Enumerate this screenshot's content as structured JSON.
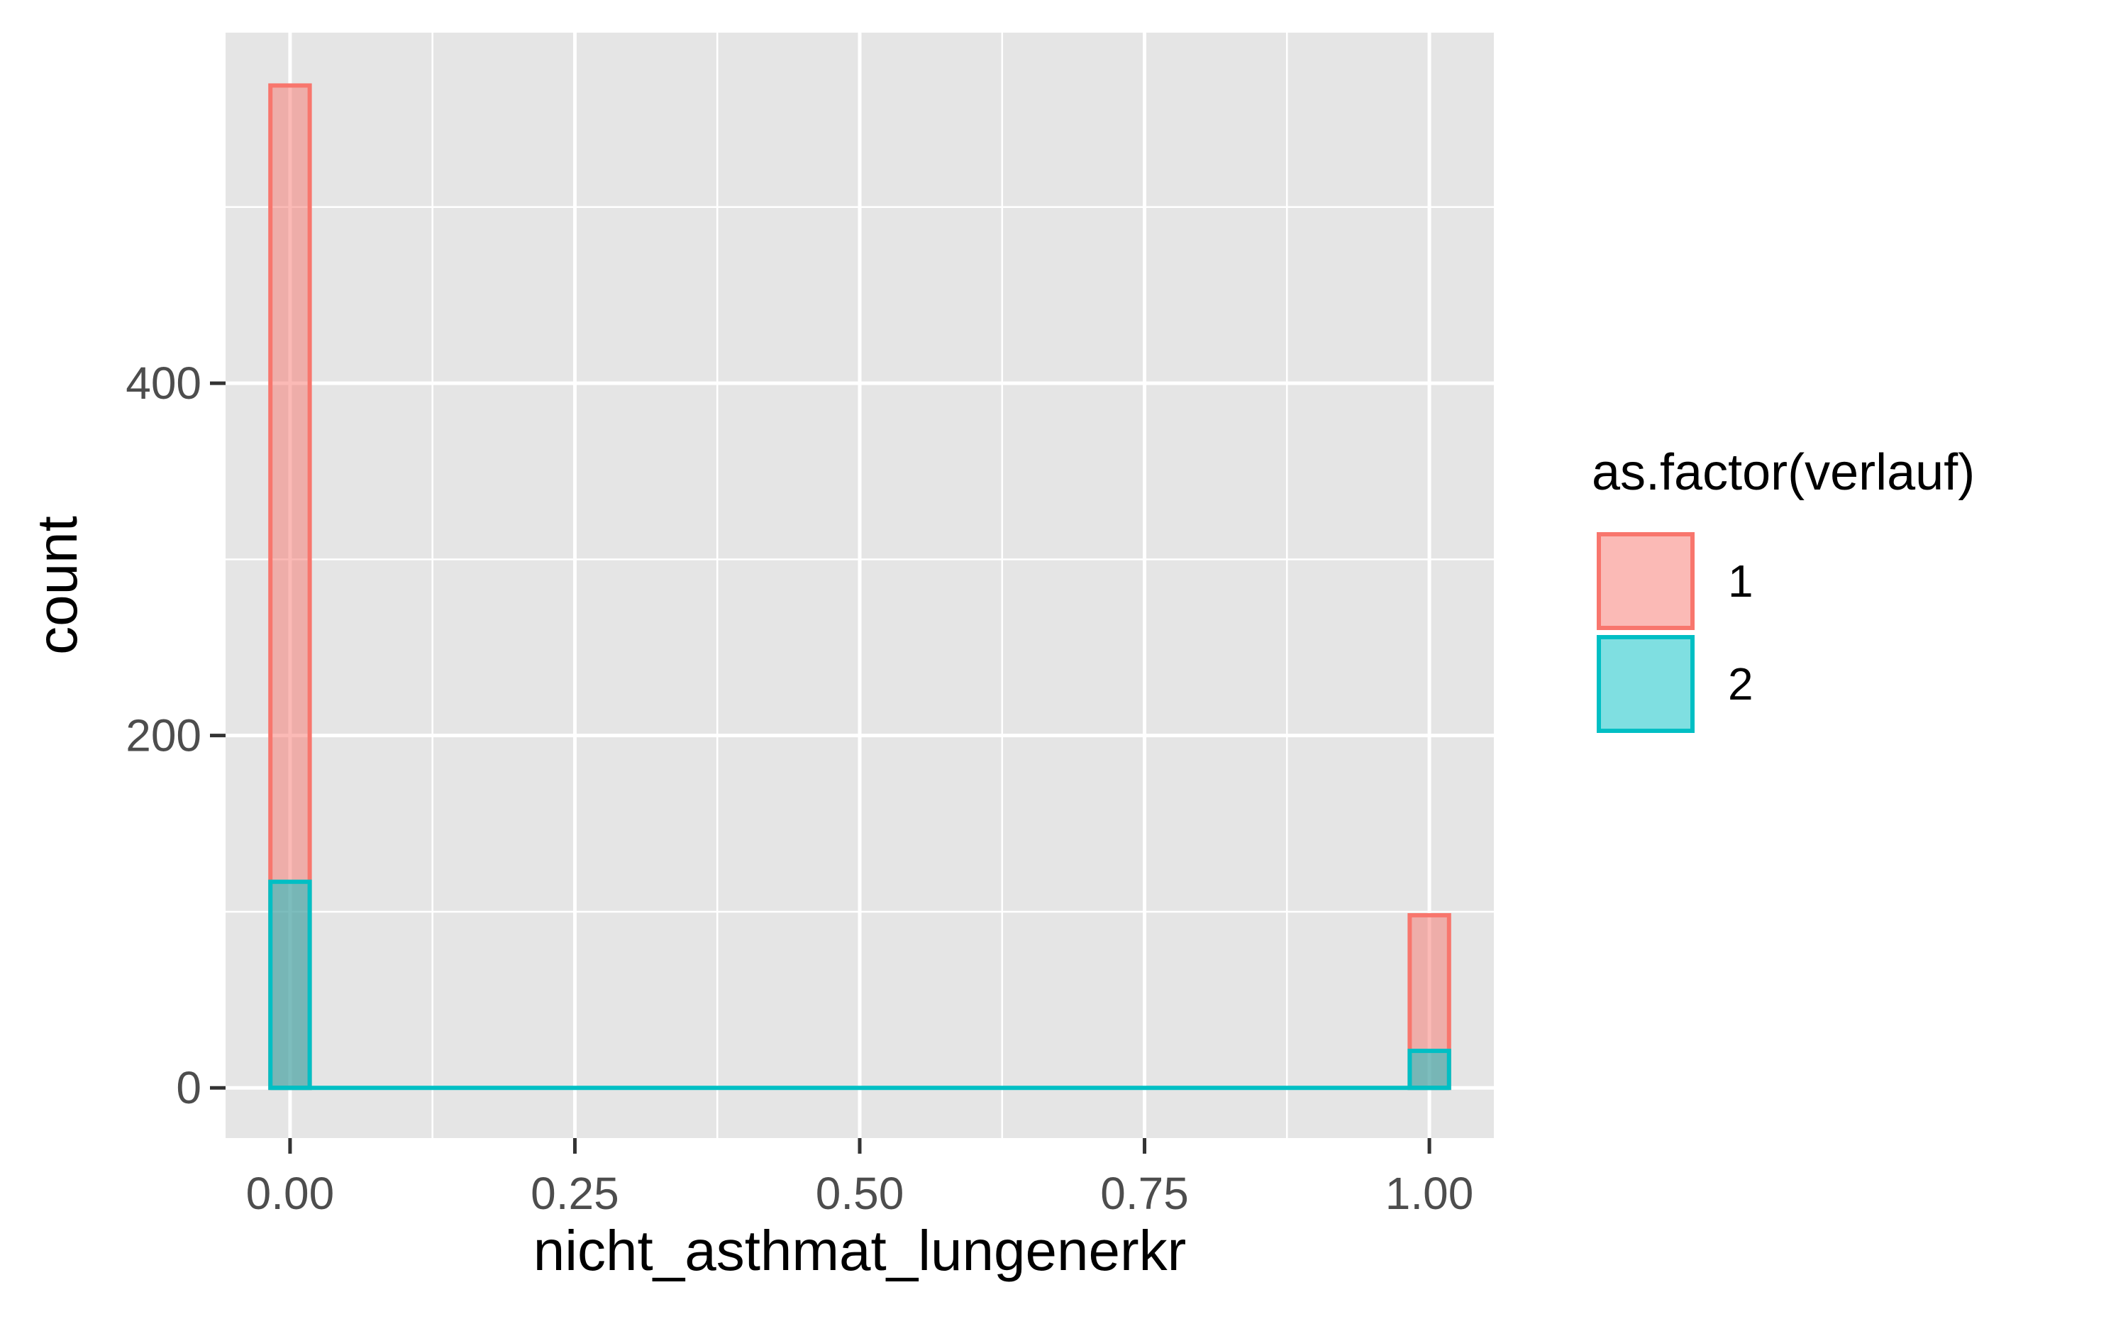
{
  "chart_data": {
    "type": "histogram",
    "xlabel": "nicht_asthmat_lungenerkr",
    "ylabel": "count",
    "xlim": [
      -0.0566,
      1.0566
    ],
    "ylim": [
      -28.5,
      599
    ],
    "x_ticks": [
      0.0,
      0.25,
      0.5,
      0.75,
      1.0
    ],
    "x_tick_labels": [
      "0.00",
      "0.25",
      "0.50",
      "0.75",
      "1.00"
    ],
    "x_minor_ticks": [
      0.125,
      0.375,
      0.625,
      0.875
    ],
    "y_ticks": [
      0,
      200,
      400
    ],
    "y_tick_labels": [
      "0",
      "200",
      "400"
    ],
    "y_minor_ticks": [
      100,
      300,
      500
    ],
    "bin_width": 0.0345,
    "bins_x": [
      0.0,
      1.0
    ],
    "grid": true,
    "legend": {
      "title": "as.factor(verlauf)",
      "position": "right",
      "entries": [
        "1",
        "2"
      ]
    },
    "series": [
      {
        "name": "1",
        "color": "#F8766D",
        "fill_alpha": 0.5,
        "values": [
          569,
          98
        ]
      },
      {
        "name": "2",
        "color": "#00BFC4",
        "fill_alpha": 0.5,
        "values": [
          117,
          21
        ]
      }
    ]
  }
}
